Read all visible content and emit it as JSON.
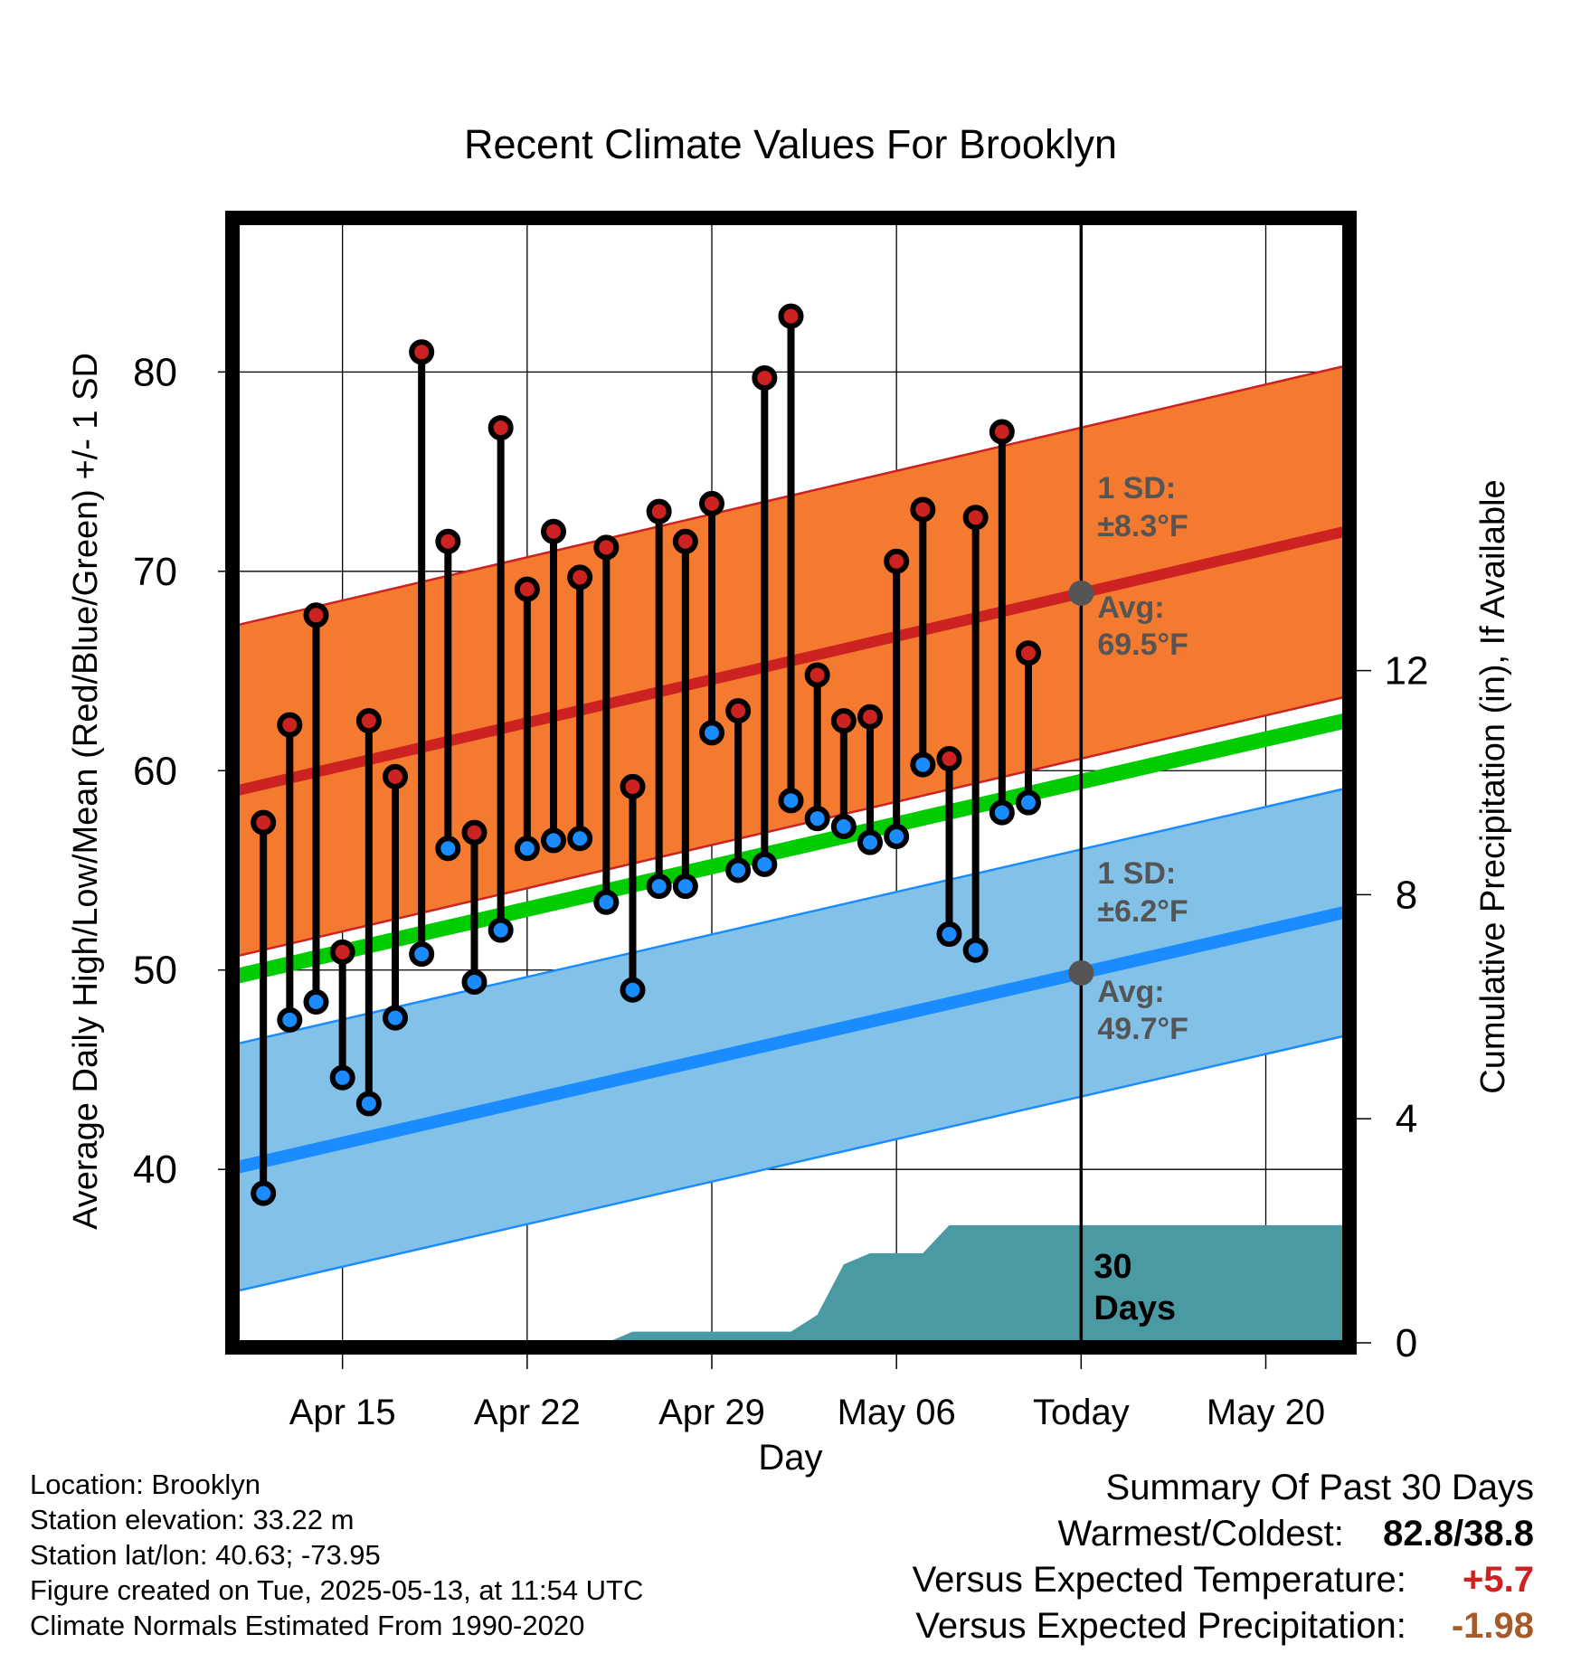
{
  "chart_data": {
    "type": "line",
    "title": "Recent Climate Values For Brooklyn",
    "xlabel": "Day",
    "ylabel": "Average Daily High/Low/Mean (Red/Blue/Green) +/- 1 SD",
    "y2label": "Cumulative Precipitation (in), If Available",
    "x_tick_labels": [
      "Apr 15",
      "Apr 22",
      "Apr 29",
      "May 06",
      "Today",
      "May 20"
    ],
    "ylim": [
      31.3,
      87.5
    ],
    "y_ticks": [
      40,
      50,
      60,
      70,
      80
    ],
    "y2lim": [
      0,
      20
    ],
    "y2_ticks": [
      0,
      4,
      8,
      12
    ],
    "dates": [
      "Apr 12",
      "Apr 13",
      "Apr 14",
      "Apr 15",
      "Apr 16",
      "Apr 17",
      "Apr 18",
      "Apr 19",
      "Apr 20",
      "Apr 21",
      "Apr 22",
      "Apr 23",
      "Apr 24",
      "Apr 25",
      "Apr 26",
      "Apr 27",
      "Apr 28",
      "Apr 29",
      "Apr 30",
      "May 01",
      "May 02",
      "May 03",
      "May 04",
      "May 05",
      "May 06",
      "May 07",
      "May 08",
      "May 09",
      "May 10",
      "May 11",
      "May 12"
    ],
    "series": [
      {
        "name": "High",
        "color": "#cc2222",
        "values": [
          57.4,
          62.3,
          67.8,
          50.9,
          62.5,
          59.7,
          81.0,
          71.5,
          56.9,
          77.2,
          69.1,
          72.0,
          69.7,
          71.2,
          59.2,
          73.0,
          71.5,
          73.4,
          63.0,
          79.7,
          82.8,
          64.8,
          62.5,
          62.7,
          70.5,
          73.1,
          60.6,
          72.7,
          77.0,
          65.9,
          null
        ]
      },
      {
        "name": "Low",
        "color": "#1a8cff",
        "values": [
          38.8,
          47.5,
          48.4,
          44.6,
          43.3,
          47.6,
          50.8,
          56.1,
          49.4,
          52.0,
          56.1,
          56.5,
          56.6,
          53.4,
          49.0,
          54.2,
          54.2,
          61.9,
          55.0,
          55.3,
          58.5,
          57.6,
          57.2,
          56.4,
          56.7,
          60.3,
          51.8,
          51.0,
          57.9,
          58.4,
          null
        ]
      }
    ],
    "normals": {
      "high_avg": [
        59.0,
        72.0
      ],
      "high_sd": 8.3,
      "low_avg": [
        40.1,
        52.9
      ],
      "low_sd": 6.2,
      "mean_avg": [
        49.7,
        62.5
      ],
      "span": [
        "Apr 11",
        "May 23"
      ]
    },
    "precip_cumulative": {
      "dates": [
        "Apr 11",
        "Apr 25",
        "Apr 26",
        "May 02",
        "May 03",
        "May 04",
        "May 05",
        "May 07",
        "May 08",
        "May 23"
      ],
      "values": [
        0,
        0,
        0.2,
        0.2,
        0.5,
        1.4,
        1.6,
        1.6,
        2.1,
        2.1
      ],
      "label": "30",
      "sublabel": "Days"
    },
    "today_line": "May 13",
    "annotations": {
      "high_sd_title": "1 SD:",
      "high_sd_value": "±8.3°F",
      "high_avg_title": "Avg:",
      "high_avg_value": "69.5°F",
      "low_sd_title": "1 SD:",
      "low_sd_value": "±6.2°F",
      "low_avg_title": "Avg:",
      "low_avg_value": "49.7°F"
    },
    "grid": true,
    "legend": "none"
  },
  "colors": {
    "high_band": "#f47a30",
    "high_line": "#cc2222",
    "low_band": "#82c1e8",
    "low_line": "#1a8cff",
    "mean_line": "#00cc00",
    "precip": "#4a9aa3",
    "annotation": "#555555",
    "warm_value": "#cc2222",
    "precip_value": "#a65a28"
  },
  "info": {
    "location": "Location: Brooklyn",
    "elevation": "Station elevation: 33.22 m",
    "latlon": "Station lat/lon: 40.63; -73.95",
    "created": "Figure created on Tue, 2025-05-13, at 11:54 UTC",
    "normals": "Climate Normals Estimated From 1990-2020"
  },
  "summary": {
    "title": "Summary Of Past 30 Days",
    "warm_cold_label": "Warmest/Coldest:",
    "warm_cold_value": "82.8/38.8",
    "temp_label": "Versus Expected Temperature:",
    "temp_value": "+5.7",
    "precip_label": "Versus Expected Precipitation:",
    "precip_value": "-1.98"
  }
}
